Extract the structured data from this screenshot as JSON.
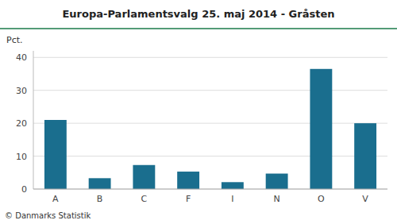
{
  "chart_data": {
    "type": "bar",
    "title": "Europa-Parlamentsvalg 25. maj 2014 - Gråsten",
    "ylabel": "Pct.",
    "footer": "© Danmarks Statistik",
    "categories": [
      "A",
      "B",
      "C",
      "F",
      "I",
      "N",
      "O",
      "V"
    ],
    "values": [
      21.0,
      3.3,
      7.3,
      5.3,
      2.1,
      4.7,
      36.5,
      20.0
    ],
    "color": "#1a6e8e",
    "ylim": [
      0,
      42
    ],
    "yticks": [
      0,
      10,
      20,
      30,
      40
    ],
    "grid": true
  }
}
